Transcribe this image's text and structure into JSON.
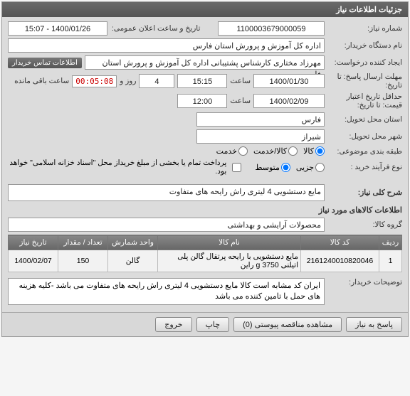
{
  "panel": {
    "title": "جزئیات اطلاعات نیاز"
  },
  "labels": {
    "reqNo": "شماره نیاز:",
    "pubDateTime": "تاریخ و ساعت اعلان عمومی:",
    "buyerOrg": "نام دستگاه خریدار:",
    "creator": "ایجاد کننده درخواست:",
    "buyerContact": "اطلاعات تماس خریدار",
    "answerDeadline": "مهلت ارسال پاسخ: تا تاریخ:",
    "hour": "ساعت",
    "and": "و",
    "day": "روز",
    "remain": "ساعت باقی مانده",
    "priceValidMin": "حداقل تاریخ اعتبار قیمت: تا تاریخ:",
    "deliverProv": "استان محل تحویل:",
    "deliverCity": "شهر محل تحویل:",
    "budgetClass": "طبقه بندی موضوعی:",
    "goods": "کالا",
    "goodsService": "کالا/خدمت",
    "service": "خدمت",
    "procType": "نوع فرآیند خرید :",
    "small": "جزیی",
    "medium": "متوسط",
    "partialPay": "پرداخت تمام یا بخشی از مبلغ خریداز محل \"اسناد خزانه اسلامی\" خواهد بود.",
    "generalDesc": "شرح کلی نیاز:",
    "itemsInfo": "اطلاعات کالاهای مورد نیاز",
    "itemGroup": "گروه کالا:",
    "buyerNotes": "توضیحات خریدار:",
    "respond": "پاسخ به نیاز",
    "attachments": "مشاهده مناقصه پیوستی (0)",
    "print": "چاپ",
    "exit": "خروج"
  },
  "values": {
    "reqNo": "1100003679000059",
    "pubDateTime": "1400/01/26 - 15:07",
    "buyerOrg": "اداره کل آموزش و پرورش استان فارس",
    "creator": "مهرزاد  مختاری  کارشناس پشتیبانی اداره کل آموزش و پرورش استان فارس",
    "answerDate": "1400/01/30",
    "answerHour": "15:15",
    "daysLeft": "4",
    "countdown": "00:05:08",
    "priceValidDate": "1400/02/09",
    "priceValidHour": "12:00",
    "province": "فارس",
    "city": "شیراز",
    "generalDesc": "مایع دستشویی 4 لیتری راش رایحه های متفاوت",
    "itemGroup": "محصولات آرایشی و بهداشتی",
    "buyerNotes": "ایران کد مشابه است کالا مایع دستشویی 4 لیتری راش رایحه های متفاوت می باشد -کلیه هزینه های حمل با تامین کننده می باشد"
  },
  "radios": {
    "budget": "goods",
    "proc": "medium"
  },
  "tableCols": {
    "row": "ردیف",
    "code": "کد کالا",
    "name": "نام کالا",
    "unit": "واحد شمارش",
    "qty": "تعداد / مقدار",
    "needDate": "تاریخ نیاز"
  },
  "tableRows": [
    {
      "row": "1",
      "code": "2161240010820046",
      "name": "مایع دستشویی با رایحه پرتقال گالن پلی اتیلنی 3750 g راین",
      "unit": "گالن",
      "qty": "150",
      "needDate": "1400/02/07"
    }
  ]
}
